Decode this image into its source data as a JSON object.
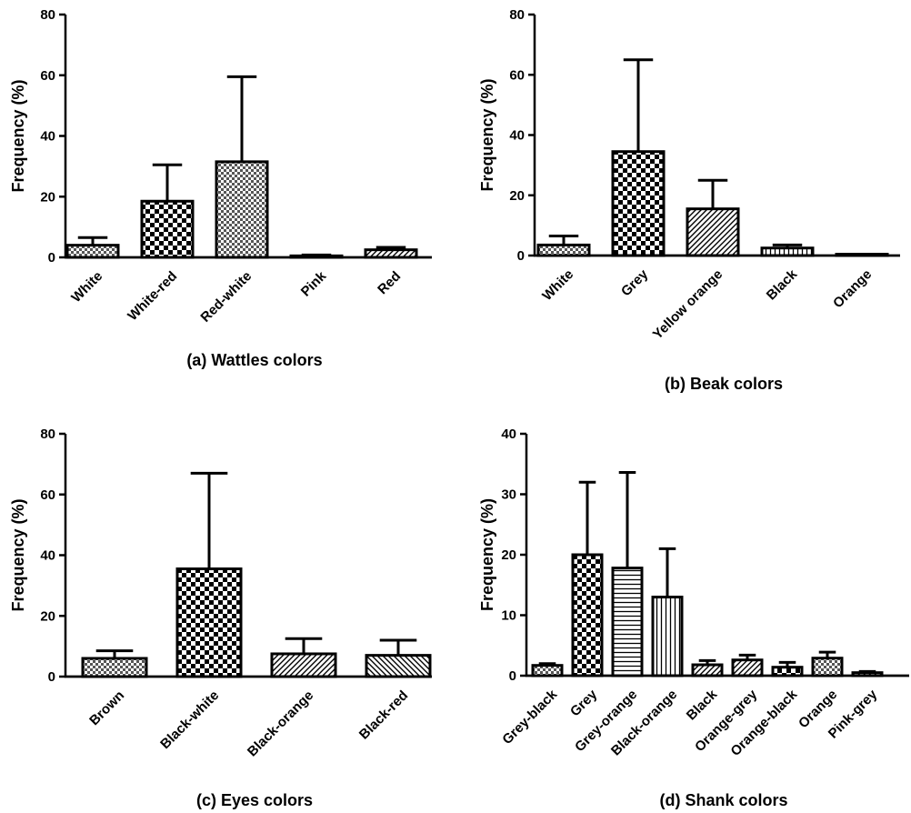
{
  "chart_data": [
    {
      "type": "bar",
      "caption": "(a) Wattles colors",
      "ylabel": "Frequency (%)",
      "ylim": [
        0,
        80
      ],
      "yticks": [
        0,
        20,
        40,
        60,
        80
      ],
      "categories": [
        "White",
        "White-red",
        "Red-white",
        "Pink",
        "Red"
      ],
      "values": [
        4,
        18.5,
        31.5,
        0.5,
        2.5
      ],
      "errors": [
        2.5,
        12,
        28,
        0.3,
        0.8
      ],
      "patterns": [
        "fine-check",
        "check",
        "fine-check",
        "diag",
        "diag"
      ]
    },
    {
      "type": "bar",
      "caption": "(b) Beak colors",
      "ylabel": "Frequency (%)",
      "ylim": [
        0,
        80
      ],
      "yticks": [
        0,
        20,
        40,
        60,
        80
      ],
      "categories": [
        "White",
        "Grey",
        "Yellow orange",
        "Black",
        "Orange"
      ],
      "values": [
        3.5,
        34.5,
        15.5,
        2.5,
        0.2
      ],
      "errors": [
        3,
        30.5,
        9.5,
        1,
        0.1
      ],
      "patterns": [
        "fine-check",
        "check",
        "diag",
        "vert",
        "plain"
      ]
    },
    {
      "type": "bar",
      "caption": "(c) Eyes colors",
      "ylabel": "Frequency (%)",
      "ylim": [
        0,
        80
      ],
      "yticks": [
        0,
        20,
        40,
        60,
        80
      ],
      "categories": [
        "Brown",
        "Black-white",
        "Black-orange",
        "Black-red"
      ],
      "values": [
        6,
        35.5,
        7.5,
        7
      ],
      "errors": [
        2.5,
        31.5,
        5,
        5
      ],
      "patterns": [
        "fine-check",
        "check",
        "diag",
        "diag-back"
      ]
    },
    {
      "type": "bar",
      "caption": "(d) Shank colors",
      "ylabel": "Frequency (%)",
      "ylim": [
        0,
        40
      ],
      "yticks": [
        0,
        10,
        20,
        30,
        40
      ],
      "categories": [
        "Grey-black",
        "Grey",
        "Grey-orange",
        "Black-orange",
        "Black",
        "Orange-grey",
        "Orange-black",
        "Orange",
        "Pink-grey"
      ],
      "values": [
        1.7,
        20,
        17.8,
        13,
        1.8,
        2.6,
        1.4,
        2.9,
        0.5
      ],
      "errors": [
        0.3,
        12,
        15.8,
        8,
        0.7,
        0.8,
        0.8,
        1,
        0.2
      ],
      "patterns": [
        "fine-check",
        "check",
        "horiz",
        "vert",
        "diag",
        "diag",
        "check",
        "fine-check",
        "diag"
      ]
    }
  ]
}
